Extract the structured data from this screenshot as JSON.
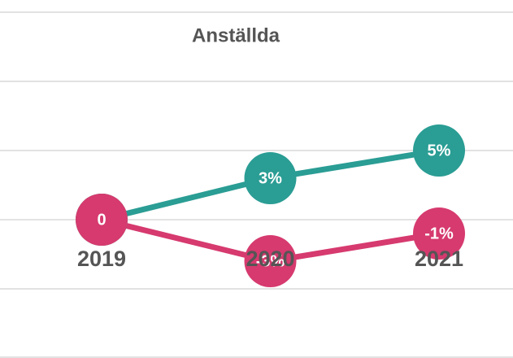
{
  "chart_data": {
    "type": "line",
    "title": "Anställda",
    "categories": [
      "2019",
      "2020",
      "2021"
    ],
    "series": [
      {
        "color": "#2a9d94",
        "values": [
          0,
          3,
          5
        ],
        "value_labels": [
          "0",
          "3%",
          "5%"
        ]
      },
      {
        "color": "#d63a6e",
        "values": [
          0,
          -3,
          -1
        ],
        "value_labels": [
          "0",
          "-3%",
          "-1%"
        ]
      }
    ],
    "ylim": [
      -10,
      15
    ],
    "yticks": [
      -10,
      -5,
      0,
      5,
      10,
      15
    ],
    "grid": true
  }
}
